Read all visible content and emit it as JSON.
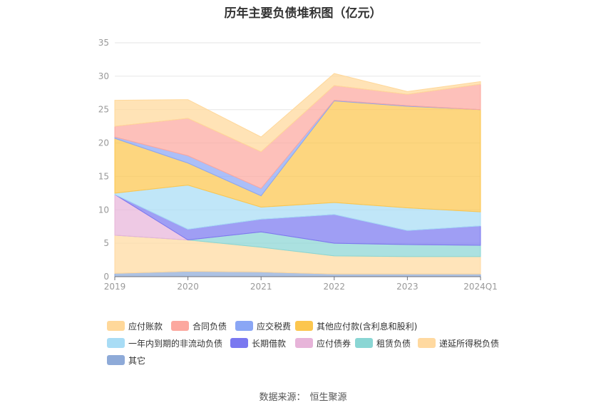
{
  "title": "历年主要负债堆积图（亿元）",
  "source": {
    "label": "数据来源：",
    "value": "恒生聚源"
  },
  "chart_data": {
    "type": "area",
    "stacked": true,
    "categories": [
      "2019",
      "2020",
      "2021",
      "2022",
      "2023",
      "2024Q1"
    ],
    "ylim": [
      0,
      35
    ],
    "yticks": [
      0,
      5,
      10,
      15,
      20,
      25,
      30,
      35
    ],
    "grid": true,
    "legend_position": "bottom",
    "series": [
      {
        "name": "其它",
        "color": "#8eaad8",
        "values": [
          0.5,
          0.8,
          0.7,
          0.4,
          0.4,
          0.4
        ]
      },
      {
        "name": "递延所得税负债",
        "color": "#ffd9a0",
        "values": [
          5.7,
          4.7,
          3.7,
          2.7,
          2.6,
          2.6
        ]
      },
      {
        "name": "租赁负债",
        "color": "#8ad6d4",
        "values": [
          0.0,
          0.0,
          2.3,
          1.9,
          1.8,
          1.7
        ]
      },
      {
        "name": "应付债券",
        "color": "#e7b4d9",
        "values": [
          6.1,
          0.0,
          0.0,
          0.0,
          0.0,
          0.0
        ]
      },
      {
        "name": "长期借款",
        "color": "#7a78f0",
        "values": [
          0.0,
          1.6,
          1.9,
          4.3,
          2.1,
          2.9
        ]
      },
      {
        "name": "一年内到期的非流动负债",
        "color": "#a8dcf5",
        "values": [
          0.2,
          6.6,
          1.8,
          1.8,
          3.4,
          2.1
        ]
      },
      {
        "name": "其他应付款(含利息和股利)",
        "color": "#fcc64e",
        "values": [
          8.2,
          3.3,
          1.7,
          15.2,
          15.2,
          15.3
        ]
      },
      {
        "name": "应交税费",
        "color": "#8aa6f5",
        "values": [
          0.2,
          1.1,
          1.1,
          0.1,
          0.1,
          0.0
        ]
      },
      {
        "name": "合同负债",
        "color": "#fca89f",
        "values": [
          1.6,
          5.6,
          5.5,
          2.2,
          1.7,
          3.8
        ]
      },
      {
        "name": "应付账款",
        "color": "#ffd89a",
        "values": [
          3.9,
          2.8,
          2.2,
          1.8,
          0.4,
          0.4
        ]
      }
    ],
    "legend_order": [
      "应付账款",
      "合同负债",
      "应交税费",
      "其他应付款(含利息和股利)",
      "一年内到期的非流动负债",
      "长期借款",
      "应付债券",
      "租赁负债",
      "递延所得税负债",
      "其它"
    ]
  }
}
